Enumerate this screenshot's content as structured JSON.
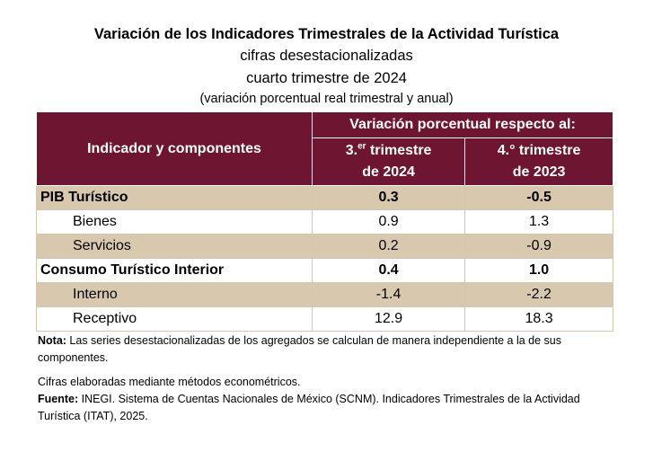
{
  "titles": {
    "main": "Variación de los Indicadores Trimestrales de la Actividad Turística",
    "line2": "cifras desestacionalizadas",
    "line3": "cuarto trimestre de 2024",
    "line4": "(variación porcentual real trimestral y anual)"
  },
  "table": {
    "header": {
      "indicator": "Indicador y componentes",
      "variation": "Variación porcentual respecto al:",
      "col1": {
        "num": "3.",
        "sup": "er",
        "rest": " trimestre",
        "year": "de 2024"
      },
      "col2": {
        "num": "4.° trimestre",
        "year": "de 2023"
      }
    },
    "rows": [
      {
        "label": "PIB Turístico",
        "v1": "0.3",
        "v2": "-0.5"
      },
      {
        "label": "Bienes",
        "v1": "0.9",
        "v2": "1.3"
      },
      {
        "label": "Servicios",
        "v1": "0.2",
        "v2": "-0.9"
      },
      {
        "label": "Consumo Turístico Interior",
        "v1": "0.4",
        "v2": "1.0"
      },
      {
        "label": "Interno",
        "v1": "-1.4",
        "v2": "-2.2"
      },
      {
        "label": "Receptivo",
        "v1": "12.9",
        "v2": "18.3"
      }
    ]
  },
  "notes": {
    "nota_label": "Nota:",
    "nota_text": " Las series desestacionalizadas de los agregados se calculan de manera independiente a la de sus componentes.",
    "cifras": "Cifras elaboradas mediante métodos econométricos.",
    "fuente_label": "Fuente:",
    "fuente_text": " INEGI. Sistema de Cuentas Nacionales de México (SCNM). Indicadores Trimestrales de la Actividad Turística (ITAT), 2025."
  },
  "colors": {
    "header_bg": "#6d1531",
    "row_tan": "#d8c9ae"
  }
}
